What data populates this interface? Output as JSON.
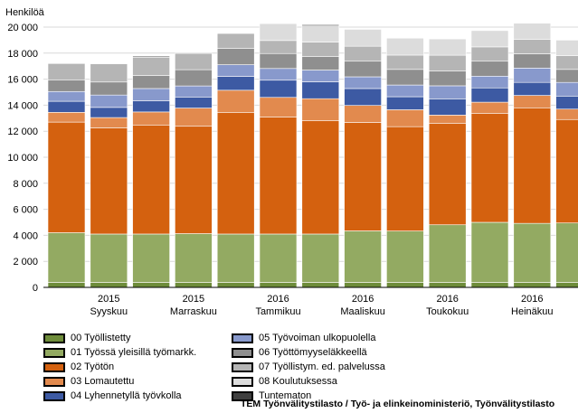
{
  "chart_data": {
    "type": "bar",
    "stacked": true,
    "ylabel": "Henkilöä",
    "ylim": [
      0,
      20000
    ],
    "yticks": [
      0,
      2000,
      4000,
      6000,
      8000,
      10000,
      12000,
      14000,
      16000,
      18000,
      20000
    ],
    "ytick_labels": [
      "0",
      "2 000",
      "4 000",
      "6 000",
      "8 000",
      "10 000",
      "12 000",
      "14 000",
      "16 000",
      "18 000",
      "20 000"
    ],
    "categories": [
      "2015-08",
      "2015-09",
      "2015-10",
      "2015-11",
      "2015-12",
      "2016-01",
      "2016-02",
      "2016-03",
      "2016-04",
      "2016-05",
      "2016-06",
      "2016-07",
      "2016-08"
    ],
    "xtick_labels": [
      {
        "index": 1,
        "year": "2015",
        "month": "Syyskuu"
      },
      {
        "index": 3,
        "year": "2015",
        "month": "Marraskuu"
      },
      {
        "index": 5,
        "year": "2016",
        "month": "Tammikuu"
      },
      {
        "index": 7,
        "year": "2016",
        "month": "Maaliskuu"
      },
      {
        "index": 9,
        "year": "2016",
        "month": "Toukokuu"
      },
      {
        "index": 11,
        "year": "2016",
        "month": "Heinäkuu"
      }
    ],
    "grid": true,
    "legend_position": "bottom",
    "series": [
      {
        "name": "00 Työllistetty",
        "color": "#6e8c3a",
        "values": [
          380,
          380,
          380,
          380,
          380,
          380,
          380,
          380,
          380,
          380,
          380,
          380,
          380
        ]
      },
      {
        "name": "01 Työssä yleisillä työmarkk.",
        "color": "#93aa62",
        "values": [
          3820,
          3720,
          3720,
          3750,
          3720,
          3720,
          3720,
          3960,
          3950,
          4430,
          4620,
          4540,
          4570
        ]
      },
      {
        "name": "02 Työtön",
        "color": "#d4610f",
        "values": [
          8500,
          8150,
          8380,
          8250,
          9350,
          9000,
          8700,
          8340,
          8020,
          7780,
          8380,
          8880,
          7950
        ]
      },
      {
        "name": "03 Lomautettu",
        "color": "#e28a4e",
        "values": [
          750,
          800,
          1000,
          1400,
          1700,
          1500,
          1700,
          1300,
          1300,
          650,
          850,
          950,
          800
        ]
      },
      {
        "name": "04 Lyhennetyllä työvkolla",
        "color": "#3d5aa3",
        "values": [
          850,
          780,
          850,
          850,
          1060,
          1320,
          1300,
          1300,
          1000,
          1250,
          1100,
          1000,
          1000
        ]
      },
      {
        "name": "05 Työvoiman ulkopuolella",
        "color": "#8899cc",
        "values": [
          750,
          950,
          950,
          850,
          900,
          900,
          900,
          900,
          900,
          1000,
          900,
          1100,
          1050
        ]
      },
      {
        "name": "06 Työttömyyseläkkeellä",
        "color": "#8f8f8f",
        "values": [
          900,
          1000,
          1000,
          1250,
          1250,
          1150,
          1050,
          1200,
          1200,
          1150,
          1150,
          1100,
          1000
        ]
      },
      {
        "name": "07 Työllistym. ed. palvelussa",
        "color": "#b5b5b5",
        "values": [
          1250,
          1400,
          1400,
          1250,
          1150,
          1000,
          1100,
          1150,
          1100,
          1200,
          1100,
          1100,
          1050
        ]
      },
      {
        "name": "08 Koulutuksessa",
        "color": "#dcdcdc",
        "values": [
          0,
          0,
          0,
          0,
          0,
          1300,
          1250,
          1300,
          1300,
          1250,
          1250,
          1250,
          1200
        ]
      },
      {
        "name": "Tuntematon",
        "color": "#3f3f3f",
        "values": [
          0,
          0,
          80,
          0,
          0,
          0,
          80,
          0,
          0,
          0,
          0,
          0,
          0
        ]
      }
    ]
  },
  "source": "TEM Työnvälitystilasto / Työ- ja elinkeinoministeriö, Työnvälitystilasto"
}
